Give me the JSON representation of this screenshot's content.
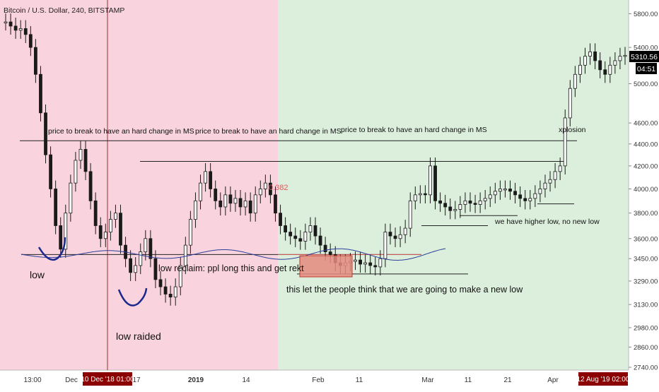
{
  "header": {
    "symbol": "Bitcoin / U.S. Dollar, 240, BITSTAMP"
  },
  "colors": {
    "bear_zone": "#f9d3de",
    "bull_zone": "#dcefdc",
    "candle": "#1a1a1a",
    "wave": "#2c3e9a",
    "arc": "#1a2a8c",
    "fib": "#e05a5a",
    "box_fill": "#e48b7f",
    "time_badge": "#8b0000",
    "price_badge": "#000000"
  },
  "chart_data": {
    "type": "candlestick",
    "title": "Bitcoin / U.S. Dollar, 240, BITSTAMP",
    "ylabel": "",
    "xlabel": "",
    "ylim": [
      2740,
      5900
    ],
    "y_scale": "log",
    "y_ticks": [
      "5800.00",
      "5400.00",
      "5000.00",
      "4600.00",
      "4400.00",
      "4200.00",
      "4000.00",
      "3800.00",
      "3600.00",
      "3450.00",
      "3290.00",
      "3130.00",
      "2980.00",
      "2860.00",
      "2740.00"
    ],
    "x_ticks": [
      "13:00",
      "Dec",
      "17",
      "2019",
      "14",
      "Feb",
      "11",
      "Mar",
      "11",
      "21",
      "Apr"
    ],
    "x_badges": {
      "left": "10 Dec '18  01:00",
      "right": "12 Aug '19  02:00"
    },
    "price_badge": "5310.56",
    "countdown_badge": "04:51",
    "zones": [
      {
        "name": "bearish",
        "color": "#f9d3de"
      },
      {
        "name": "bullish",
        "color": "#dcefdc"
      }
    ],
    "series": [
      {
        "values": [
          5700,
          5650,
          5600,
          5620,
          5550,
          5400,
          5100,
          4700,
          4300,
          4000,
          3700,
          3520,
          3800,
          4050,
          4250,
          4350,
          4150,
          3900,
          3700,
          3600,
          3650,
          3750,
          3800,
          3550,
          3450,
          3350,
          3400,
          3500,
          3600,
          3450,
          3300,
          3250,
          3200,
          3180,
          3250,
          3400,
          3550,
          3750,
          3900,
          4050,
          4150,
          4000,
          3900,
          3850,
          3950,
          3880,
          3920,
          3850,
          3900,
          3800,
          3950,
          4000,
          4050,
          3950,
          3800,
          3700,
          3650,
          3620,
          3600,
          3580,
          3650,
          3700,
          3620,
          3550,
          3500,
          3480,
          3420,
          3400,
          3420,
          3430,
          3440,
          3410,
          3420,
          3400,
          3390,
          3450,
          3650,
          3620,
          3600,
          3630,
          3680,
          3900,
          3950,
          3960,
          3950,
          4200,
          3900,
          3880,
          3850,
          3820,
          3830,
          3870,
          3900,
          3880,
          3870,
          3900,
          3920,
          3950,
          3980,
          4000,
          4000,
          3980,
          3950,
          3920,
          3900,
          3920,
          3960,
          4000,
          4050,
          4080,
          4150,
          4200,
          4650,
          4950,
          5100,
          5200,
          5300,
          5350,
          5250,
          5150,
          5100,
          5200,
          5250,
          5300,
          5310
        ]
      }
    ],
    "horizontal_levels": [
      {
        "label": "price to break to have an hard change in MS",
        "value": 4430
      },
      {
        "label": "",
        "value": 4240
      },
      {
        "label": "",
        "value": 3875
      },
      {
        "label": "",
        "value": 3780
      },
      {
        "label": "",
        "value": 3480
      },
      {
        "label": "",
        "value": 3340
      }
    ],
    "annotations": [
      "price to break to have an hard change in MS",
      "price to break to have an hard change in MS",
      "price to break to have an hard change in MS",
      "xplosion",
      "0.382",
      "low",
      "low raided",
      "low reclaim: ppl long this and get rekt",
      "this let the people think that we are going to make a new low",
      "we have higher low, no new low"
    ]
  },
  "annotations": {
    "ms1": "price to break to have an hard change in MS",
    "ms2": "price to break to have an hard change in MS",
    "ms3": "price to break to have an hard change in MS",
    "xplosion": "xplosion",
    "fib": "0.382",
    "low": "low",
    "low_raided": "low raided",
    "low_reclaim": "low reclaim: ppl long this and get rekt",
    "new_low": "this let the people think that we are going to make a new low",
    "higher_low": "we have higher low, no new low"
  }
}
